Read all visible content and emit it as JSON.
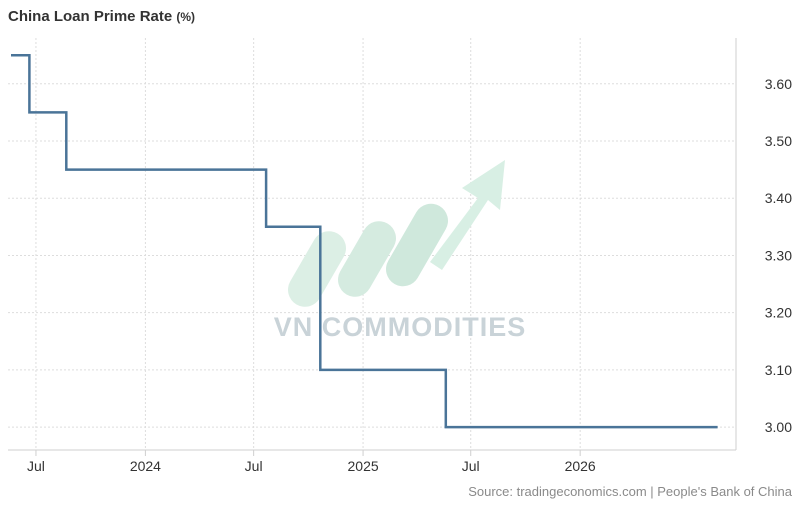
{
  "title": "China Loan Prime Rate",
  "unit": "(%)",
  "source": "Source: tradingeconomics.com | People's Bank of China",
  "watermark": "VN COMMODITIES",
  "chart_data": {
    "type": "line",
    "title": "China Loan Prime Rate",
    "unit": "%",
    "line_style": "step",
    "color": "#4a7498",
    "grid": true,
    "y_axis_side": "right",
    "ylim": [
      2.96,
      3.68
    ],
    "y_ticks": [
      "3.00",
      "3.10",
      "3.20",
      "3.30",
      "3.40",
      "3.50",
      "3.60"
    ],
    "x_ticks": [
      {
        "label": "Jul",
        "date": "2023-07-01"
      },
      {
        "label": "2024",
        "date": "2024-01-01"
      },
      {
        "label": "Jul",
        "date": "2024-07-01"
      },
      {
        "label": "2025",
        "date": "2025-01-01"
      },
      {
        "label": "Jul",
        "date": "2025-07-01"
      },
      {
        "label": "2026",
        "date": "2026-01-01"
      }
    ],
    "xlim": [
      "2023-05-15",
      "2026-09-20"
    ],
    "series": [
      {
        "name": "",
        "points": [
          {
            "x": "2023-05-20",
            "y": 3.65
          },
          {
            "x": "2023-06-20",
            "y": 3.55
          },
          {
            "x": "2023-08-21",
            "y": 3.45
          },
          {
            "x": "2024-07-22",
            "y": 3.35
          },
          {
            "x": "2024-10-21",
            "y": 3.1
          },
          {
            "x": "2025-05-20",
            "y": 3.0
          },
          {
            "x": "2026-08-20",
            "y": 3.0
          }
        ]
      }
    ]
  }
}
